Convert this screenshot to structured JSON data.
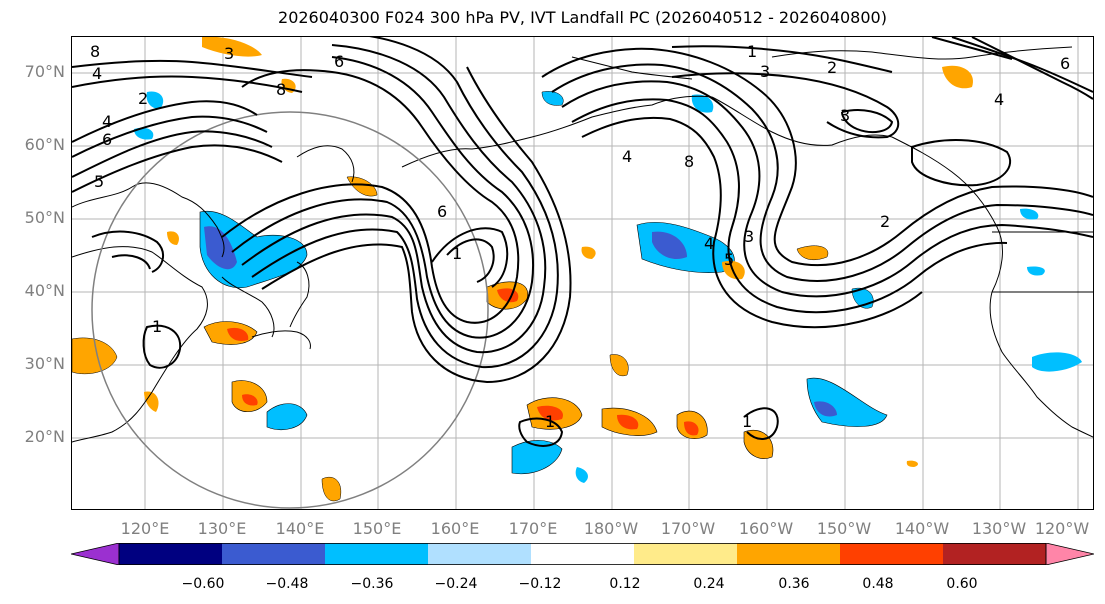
{
  "title": "2026040300 F024 300 hPa PV, IVT Landfall PC (2026040512 - 2026040800)",
  "map": {
    "lat_labels": [
      "70°N",
      "60°N",
      "50°N",
      "40°N",
      "30°N",
      "20°N"
    ],
    "lon_labels": [
      "120°E",
      "130°E",
      "140°E",
      "150°E",
      "160°E",
      "170°E",
      "180°W",
      "170°W",
      "160°W",
      "150°W",
      "140°W",
      "130°W",
      "120°W"
    ],
    "contour_labels": [
      "1",
      "2",
      "3",
      "4",
      "5",
      "6",
      "8"
    ]
  },
  "colorbar": {
    "ticks": [
      "−0.60",
      "−0.48",
      "−0.36",
      "−0.24",
      "−0.12",
      "0.12",
      "0.24",
      "0.36",
      "0.48",
      "0.60"
    ],
    "colors": [
      "#9b30d0",
      "#000080",
      "#3b5bd0",
      "#00bfff",
      "#b0e0ff",
      "#ffffff",
      "#ffeb8a",
      "#ffa500",
      "#ff4000",
      "#b22222",
      "#ff85a8"
    ]
  }
}
